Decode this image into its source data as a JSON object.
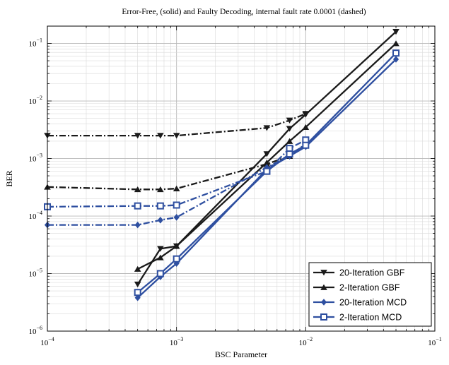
{
  "chart_data": {
    "type": "line",
    "title": "Error-Free, (solid) and Faulty Decoding, internal fault rate 0.0001 (dashed)",
    "xlabel": "BSC Parameter",
    "ylabel": "BER",
    "xscale": "log",
    "yscale": "log",
    "xlim": [
      0.0001,
      0.1
    ],
    "ylim": [
      1e-06,
      0.2
    ],
    "grid": true,
    "minor_grid": true,
    "legend_position": "bottom-right",
    "x_ticks": [
      {
        "mant": "10",
        "exp": "−4",
        "value": 0.0001
      },
      {
        "mant": "10",
        "exp": "−3",
        "value": 0.001
      },
      {
        "mant": "10",
        "exp": "−2",
        "value": 0.01
      },
      {
        "mant": "10",
        "exp": "−1",
        "value": 0.1
      }
    ],
    "y_ticks": [
      {
        "mant": "10",
        "exp": "−6",
        "value": 1e-06
      },
      {
        "mant": "10",
        "exp": "−5",
        "value": 1e-05
      },
      {
        "mant": "10",
        "exp": "−4",
        "value": 0.0001
      },
      {
        "mant": "10",
        "exp": "−3",
        "value": 0.001
      },
      {
        "mant": "10",
        "exp": "−2",
        "value": 0.01
      },
      {
        "mant": "10",
        "exp": "−1",
        "value": 0.1
      }
    ],
    "series": [
      {
        "name": "20-Iteration GBF",
        "color": "#1a1a1a",
        "marker": "triangle-down",
        "solid": {
          "x": [
            0.0005,
            0.00075,
            0.001,
            0.005,
            0.0075,
            0.01,
            0.05
          ],
          "y": [
            6.5e-06,
            2.7e-05,
            3e-05,
            0.0012,
            0.0033,
            0.0058,
            0.16
          ]
        },
        "dashed": {
          "x": [
            0.0001,
            0.0005,
            0.00075,
            0.001,
            0.005,
            0.0075,
            0.01
          ],
          "y": [
            0.0025,
            0.0025,
            0.0025,
            0.0025,
            0.0034,
            0.0046,
            0.006
          ]
        }
      },
      {
        "name": "2-Iteration GBF",
        "color": "#1a1a1a",
        "marker": "triangle-up",
        "solid": {
          "x": [
            0.0005,
            0.00075,
            0.001,
            0.005,
            0.0075,
            0.01,
            0.05
          ],
          "y": [
            1.2e-05,
            1.9e-05,
            3e-05,
            0.00085,
            0.002,
            0.0035,
            0.1
          ]
        },
        "dashed": {
          "x": [
            0.0001,
            0.0005,
            0.00075,
            0.001,
            0.005,
            0.0075,
            0.01
          ],
          "y": [
            0.00032,
            0.00029,
            0.00029,
            0.0003,
            0.0008,
            0.0011,
            0.0017
          ]
        }
      },
      {
        "name": "20-Iteration MCD",
        "color": "#2e4fa0",
        "marker": "diamond",
        "solid": {
          "x": [
            0.0005,
            0.00075,
            0.001,
            0.005,
            0.0075,
            0.01,
            0.05
          ],
          "y": [
            3.8e-06,
            8.8e-06,
            1.5e-05,
            0.00065,
            0.0011,
            0.0016,
            0.053
          ]
        },
        "dashed": {
          "x": [
            0.0001,
            0.0005,
            0.00075,
            0.001,
            0.005,
            0.0075,
            0.01
          ],
          "y": [
            7e-05,
            7e-05,
            8.5e-05,
            9.5e-05,
            0.0007,
            0.0011,
            0.0018
          ]
        }
      },
      {
        "name": "2-Iteration MCD",
        "color": "#2e4fa0",
        "marker": "square",
        "solid": {
          "x": [
            0.0005,
            0.00075,
            0.001,
            0.005,
            0.0075,
            0.01,
            0.05
          ],
          "y": [
            4.7e-06,
            1e-05,
            1.8e-05,
            0.0006,
            0.0012,
            0.0017,
            0.068
          ]
        },
        "dashed": {
          "x": [
            0.0001,
            0.0005,
            0.00075,
            0.001,
            0.005,
            0.0075,
            0.01
          ],
          "y": [
            0.000145,
            0.00015,
            0.00015,
            0.000155,
            0.0006,
            0.0015,
            0.0021
          ]
        }
      }
    ]
  }
}
